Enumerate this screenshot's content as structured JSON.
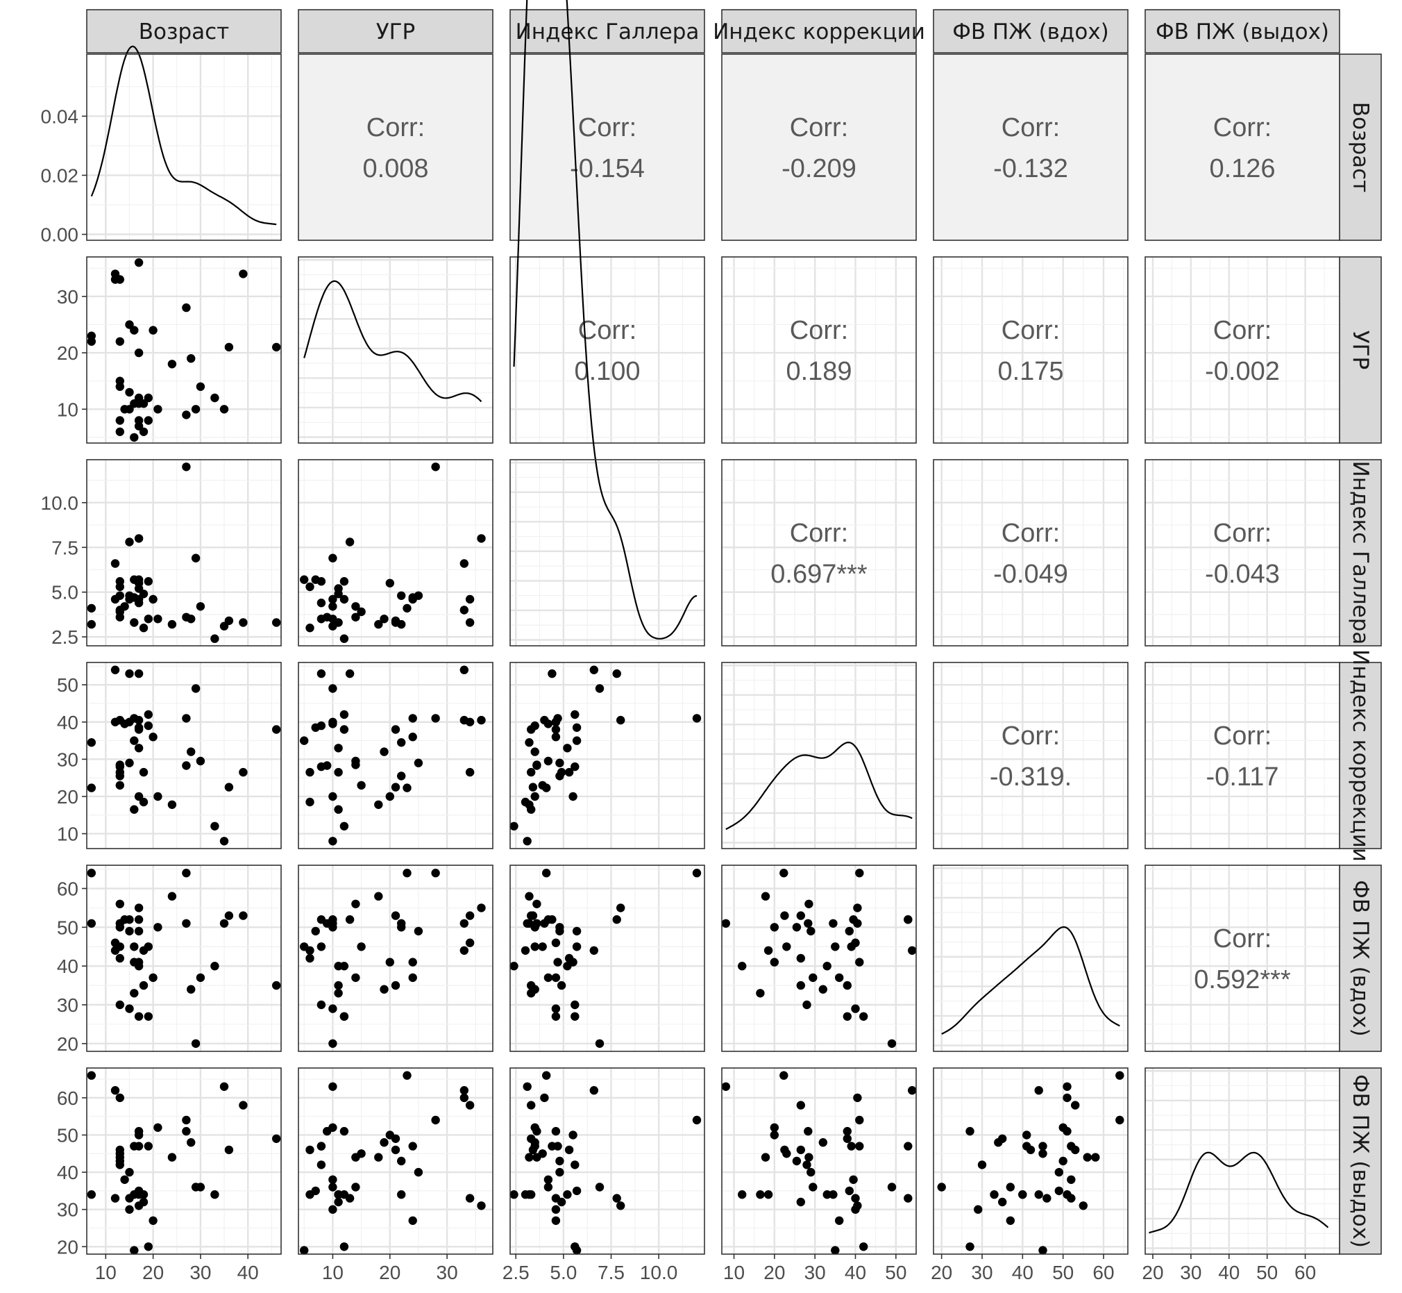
{
  "chart_data": {
    "type": "scatter",
    "layout": "pairs-matrix",
    "variables": [
      "Возраст",
      "УГР",
      "Индекс Галлера",
      "Индекс коррекции",
      "ФВ ПЖ (вдох)",
      "ФВ ПЖ (выдох)"
    ],
    "corr_label": "Corr:",
    "correlations": [
      {
        "row": 0,
        "col": 1,
        "value": "0.008"
      },
      {
        "row": 0,
        "col": 2,
        "value": "-0.154"
      },
      {
        "row": 0,
        "col": 3,
        "value": "-0.209"
      },
      {
        "row": 0,
        "col": 4,
        "value": "-0.132"
      },
      {
        "row": 0,
        "col": 5,
        "value": "0.126"
      },
      {
        "row": 1,
        "col": 2,
        "value": "0.100"
      },
      {
        "row": 1,
        "col": 3,
        "value": "0.189"
      },
      {
        "row": 1,
        "col": 4,
        "value": "0.175"
      },
      {
        "row": 1,
        "col": 5,
        "value": "-0.002"
      },
      {
        "row": 2,
        "col": 3,
        "value": "0.697***"
      },
      {
        "row": 2,
        "col": 4,
        "value": "-0.049"
      },
      {
        "row": 2,
        "col": 5,
        "value": "-0.043"
      },
      {
        "row": 3,
        "col": 4,
        "value": "-0.319."
      },
      {
        "row": 3,
        "col": 5,
        "value": "-0.117"
      },
      {
        "row": 4,
        "col": 5,
        "value": "0.592***"
      }
    ],
    "x_ranges": [
      [
        6,
        47
      ],
      [
        4,
        38
      ],
      [
        2.2,
        12.4
      ],
      [
        7,
        55
      ],
      [
        18,
        66
      ],
      [
        18,
        69
      ]
    ],
    "y_ranges": [
      [
        6,
        47
      ],
      [
        4,
        37
      ],
      [
        2,
        12.4
      ],
      [
        6,
        56
      ],
      [
        18,
        66
      ],
      [
        18,
        68
      ]
    ],
    "x_ticks": [
      [
        "10",
        "20",
        "30",
        "40"
      ],
      [
        "10",
        "20",
        "30"
      ],
      [
        "2.5",
        "5.0",
        "7.5",
        "10.0"
      ],
      [
        "10",
        "20",
        "30",
        "40",
        "50"
      ],
      [
        "20",
        "30",
        "40",
        "50",
        "60"
      ],
      [
        "20",
        "30",
        "40",
        "50",
        "60"
      ]
    ],
    "y_ticks": [
      [
        "0.00",
        "0.02",
        "0.04"
      ],
      [
        "10",
        "20",
        "30"
      ],
      [
        "2.5",
        "5.0",
        "7.5",
        "10.0"
      ],
      [
        "10",
        "20",
        "30",
        "40",
        "50"
      ],
      [
        "20",
        "30",
        "40",
        "50",
        "60"
      ],
      [
        "20",
        "30",
        "40",
        "50",
        "60"
      ]
    ],
    "density_ylim": [
      -0.002,
      0.061
    ],
    "observations": [
      [
        7,
        22,
        3.2,
        34.5,
        51,
        34
      ],
      [
        7,
        23,
        4.1,
        22.3,
        64,
        66
      ],
      [
        12,
        34,
        4.6,
        40,
        46,
        33
      ],
      [
        12,
        33,
        6.6,
        54,
        44,
        62
      ],
      [
        13,
        33,
        4,
        40.5,
        51,
        60
      ],
      [
        13,
        22,
        4.8,
        25.5,
        50,
        43
      ],
      [
        13,
        14,
        3.6,
        28.5,
        56,
        44
      ],
      [
        13,
        15,
        3.9,
        23,
        45,
        45
      ],
      [
        13,
        6,
        5.3,
        26.5,
        42,
        46
      ],
      [
        13,
        8,
        5.6,
        28,
        30,
        42
      ],
      [
        14,
        10,
        4.2,
        39.5,
        52,
        38
      ],
      [
        15,
        25,
        4.8,
        29,
        49,
        40
      ],
      [
        15,
        13,
        7.8,
        53,
        52,
        33
      ],
      [
        15,
        10,
        4.6,
        40,
        29,
        30
      ],
      [
        16,
        24,
        4.7,
        41,
        41,
        47
      ],
      [
        16,
        11,
        3.3,
        16.5,
        33,
        34
      ],
      [
        16,
        5,
        5.7,
        35,
        45,
        19
      ],
      [
        17,
        8,
        4.4,
        53,
        52,
        47
      ],
      [
        17,
        12,
        4.6,
        38,
        27,
        51
      ],
      [
        17,
        36,
        8,
        40.5,
        55,
        31
      ],
      [
        17,
        20,
        5.5,
        20,
        41,
        50
      ],
      [
        17,
        11,
        5.2,
        33,
        40,
        34
      ],
      [
        17,
        7,
        5.7,
        38.5,
        49,
        35
      ],
      [
        18,
        11,
        4.9,
        26.5,
        35,
        32
      ],
      [
        18,
        6,
        3,
        18.5,
        44,
        34
      ],
      [
        19,
        12,
        5.6,
        42,
        27,
        20
      ],
      [
        19,
        8,
        3.5,
        39,
        45,
        47
      ],
      [
        20,
        24,
        4.6,
        36,
        37,
        27
      ],
      [
        21,
        10,
        3.5,
        20,
        50,
        52
      ],
      [
        24,
        18,
        3.2,
        17.8,
        58,
        44
      ],
      [
        27,
        28,
        12,
        41,
        64,
        54
      ],
      [
        27,
        9,
        3.6,
        28.3,
        51,
        51
      ],
      [
        28,
        19,
        3.5,
        32,
        34,
        48
      ],
      [
        29,
        10,
        6.9,
        49,
        20,
        36
      ],
      [
        30,
        14,
        4.2,
        29.5,
        37,
        36
      ],
      [
        33,
        12,
        2.4,
        12,
        40,
        34
      ],
      [
        35,
        10,
        3.1,
        8,
        51,
        63
      ],
      [
        36,
        21,
        3.4,
        22.5,
        53,
        46
      ],
      [
        39,
        34,
        3.3,
        26.5,
        53,
        58
      ],
      [
        46,
        21,
        3.3,
        38,
        35,
        49
      ]
    ]
  }
}
